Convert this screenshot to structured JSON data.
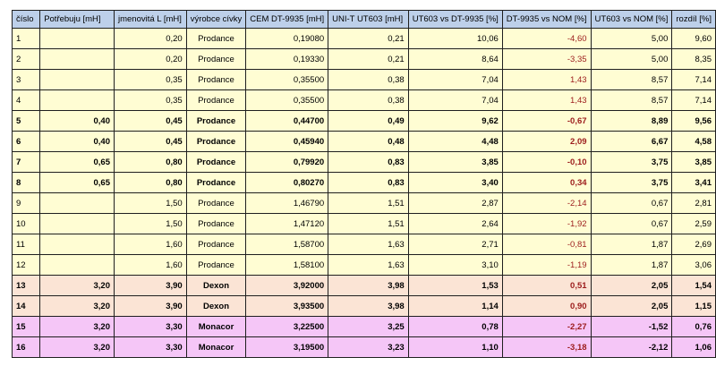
{
  "table": {
    "headers": [
      "číslo",
      "Potřebuju [mH]",
      "jmenovitá L [mH]",
      "výrobce cívky",
      "CEM DT-9935 [mH]",
      "UNI-T UT603 [mH]",
      "UT603 vs DT-9935 [%]",
      "DT-9935 vs NOM [%]",
      "UT603 vs NOM [%]",
      "rozdíl  [%]"
    ],
    "rows": [
      {
        "cells": [
          "1",
          "",
          "0,20",
          "Prodance",
          "0,19080",
          "0,21",
          "10,06",
          "-4,60",
          "5,00",
          "9,60"
        ],
        "bold": false,
        "group": "y"
      },
      {
        "cells": [
          "2",
          "",
          "0,20",
          "Prodance",
          "0,19330",
          "0,21",
          "8,64",
          "-3,35",
          "5,00",
          "8,35"
        ],
        "bold": false,
        "group": "y"
      },
      {
        "cells": [
          "3",
          "",
          "0,35",
          "Prodance",
          "0,35500",
          "0,38",
          "7,04",
          "1,43",
          "8,57",
          "7,14"
        ],
        "bold": false,
        "group": "y"
      },
      {
        "cells": [
          "4",
          "",
          "0,35",
          "Prodance",
          "0,35500",
          "0,38",
          "7,04",
          "1,43",
          "8,57",
          "7,14"
        ],
        "bold": false,
        "group": "y"
      },
      {
        "cells": [
          "5",
          "0,40",
          "0,45",
          "Prodance",
          "0,44700",
          "0,49",
          "9,62",
          "-0,67",
          "8,89",
          "9,56"
        ],
        "bold": true,
        "group": "y"
      },
      {
        "cells": [
          "6",
          "0,40",
          "0,45",
          "Prodance",
          "0,45940",
          "0,48",
          "4,48",
          "2,09",
          "6,67",
          "4,58"
        ],
        "bold": true,
        "group": "y"
      },
      {
        "cells": [
          "7",
          "0,65",
          "0,80",
          "Prodance",
          "0,79920",
          "0,83",
          "3,85",
          "-0,10",
          "3,75",
          "3,85"
        ],
        "bold": true,
        "group": "y"
      },
      {
        "cells": [
          "8",
          "0,65",
          "0,80",
          "Prodance",
          "0,80270",
          "0,83",
          "3,40",
          "0,34",
          "3,75",
          "3,41"
        ],
        "bold": true,
        "group": "y"
      },
      {
        "cells": [
          "9",
          "",
          "1,50",
          "Prodance",
          "1,46790",
          "1,51",
          "2,87",
          "-2,14",
          "0,67",
          "2,81"
        ],
        "bold": false,
        "group": "y"
      },
      {
        "cells": [
          "10",
          "",
          "1,50",
          "Prodance",
          "1,47120",
          "1,51",
          "2,64",
          "-1,92",
          "0,67",
          "2,59"
        ],
        "bold": false,
        "group": "y"
      },
      {
        "cells": [
          "11",
          "",
          "1,60",
          "Prodance",
          "1,58700",
          "1,63",
          "2,71",
          "-0,81",
          "1,87",
          "2,69"
        ],
        "bold": false,
        "group": "y"
      },
      {
        "cells": [
          "12",
          "",
          "1,60",
          "Prodance",
          "1,58100",
          "1,63",
          "3,10",
          "-1,19",
          "1,87",
          "3,06"
        ],
        "bold": false,
        "group": "y"
      },
      {
        "cells": [
          "13",
          "3,20",
          "3,90",
          "Dexon",
          "3,92000",
          "3,98",
          "1,53",
          "0,51",
          "2,05",
          "1,54"
        ],
        "bold": true,
        "group": "p"
      },
      {
        "cells": [
          "14",
          "3,20",
          "3,90",
          "Dexon",
          "3,93500",
          "3,98",
          "1,14",
          "0,90",
          "2,05",
          "1,15"
        ],
        "bold": true,
        "group": "p"
      },
      {
        "cells": [
          "15",
          "3,20",
          "3,30",
          "Monacor",
          "3,22500",
          "3,25",
          "0,78",
          "-2,27",
          "-1,52",
          "0,76"
        ],
        "bold": true,
        "group": "m"
      },
      {
        "cells": [
          "16",
          "3,20",
          "3,30",
          "Monacor",
          "3,19500",
          "3,23",
          "1,10",
          "-3,18",
          "-2,12",
          "1,06"
        ],
        "bold": true,
        "group": "m"
      }
    ],
    "colors": {
      "header_bg": "#bdd0ea",
      "prodance_bg": "#fffdd3",
      "dexon_bg": "#fbe4d5",
      "monacor_bg": "#f5c6f7",
      "dt9935_vs_nom_text": "#9c1c1c"
    }
  }
}
